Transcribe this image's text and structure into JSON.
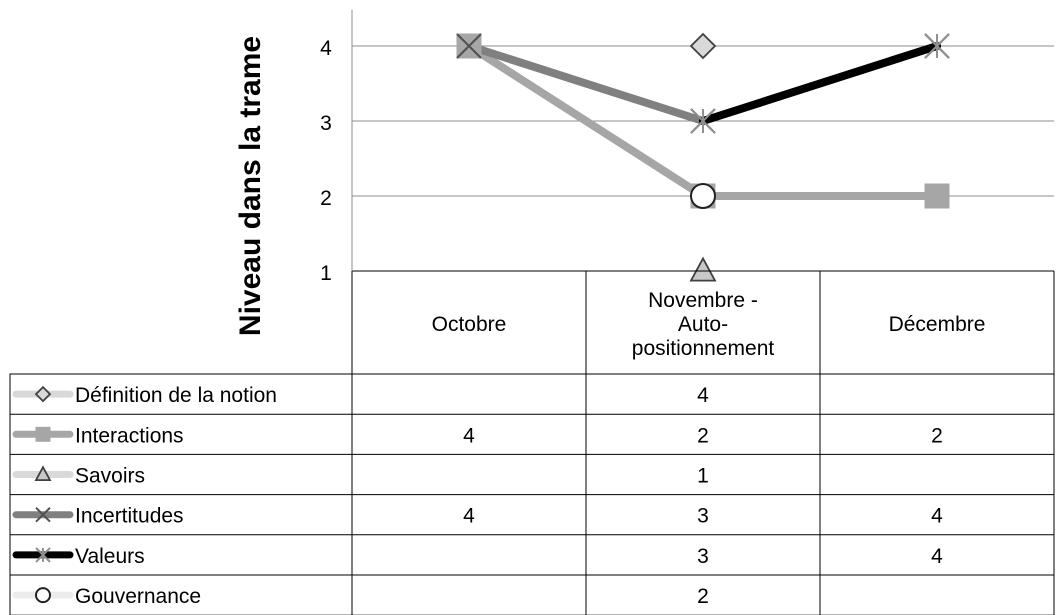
{
  "chart_data": {
    "type": "line",
    "ylabel": "Niveau dans la trame",
    "ylim": [
      1,
      4
    ],
    "yticks": [
      1,
      2,
      3,
      4
    ],
    "categories": [
      [
        "Octobre"
      ],
      [
        "Novembre -",
        "Auto-",
        "positionnement"
      ],
      [
        "Décembre"
      ]
    ],
    "series": [
      {
        "name": "Définition de la notion",
        "values": [
          null,
          4,
          null
        ],
        "color": "#a6a6a6",
        "marker": "diamond",
        "line": false
      },
      {
        "name": "Interactions",
        "values": [
          4,
          2,
          2
        ],
        "color": "#a6a6a6",
        "marker": "square",
        "line": true
      },
      {
        "name": "Savoirs",
        "values": [
          null,
          1,
          null
        ],
        "color": "#bfbfbf",
        "marker": "triangle",
        "line": false
      },
      {
        "name": "Incertitudes",
        "values": [
          4,
          3,
          4
        ],
        "color": "#808080",
        "marker": "x",
        "line": true
      },
      {
        "name": "Valeurs",
        "values": [
          null,
          3,
          4
        ],
        "color": "#000000",
        "marker": "star",
        "line": true
      },
      {
        "name": "Gouvernance",
        "values": [
          null,
          2,
          null
        ],
        "color": "#d9d9d9",
        "marker": "circle",
        "line": false
      }
    ],
    "table": [
      [
        "",
        "4",
        ""
      ],
      [
        "4",
        "2",
        "2"
      ],
      [
        "",
        "1",
        ""
      ],
      [
        "4",
        "3",
        "4"
      ],
      [
        "",
        "3",
        "4"
      ],
      [
        "",
        "2",
        ""
      ]
    ],
    "grid": true,
    "legend_placement": "data table"
  }
}
